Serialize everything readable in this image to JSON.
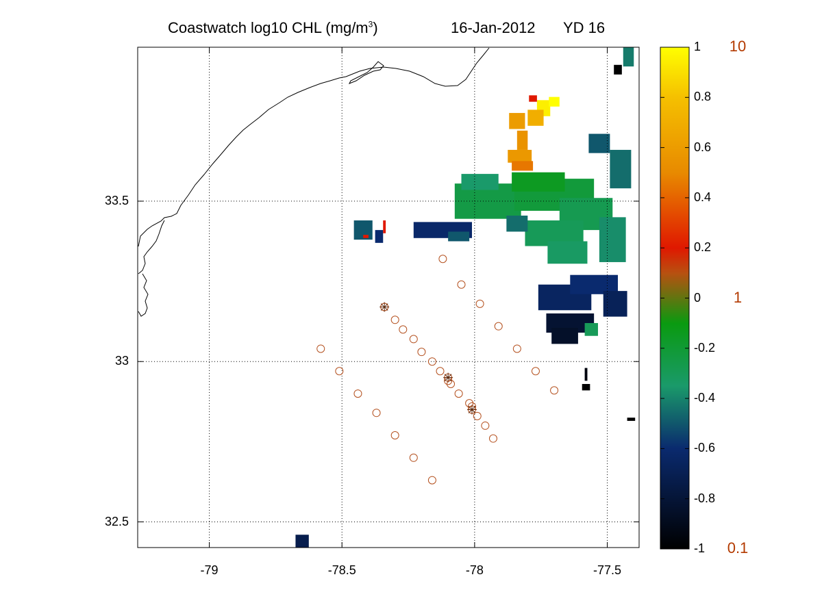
{
  "title": {
    "main_prefix": "Coastwatch  log10  CHL (mg/m",
    "main_sup": "3",
    "main_suffix": ")",
    "date": "16-Jan-2012",
    "yearday": "YD 16"
  },
  "map": {
    "lon_range": [
      -79.27,
      -77.38
    ],
    "lat_range": [
      32.42,
      33.98
    ],
    "lon_ticks": [
      -79,
      -78.5,
      -78,
      -77.5
    ],
    "lon_tick_labels": [
      "-79",
      "-78.5",
      "-78",
      "-77.5"
    ],
    "lat_ticks": [
      32.5,
      33,
      33.5
    ],
    "lat_tick_labels": [
      "32.5",
      "33",
      "33.5"
    ],
    "grid": true,
    "coastline_color": "#000000"
  },
  "stations": {
    "marker": "circle",
    "marker_color": "#b4501e",
    "points": [
      [
        -78.12,
        33.32
      ],
      [
        -78.05,
        33.24
      ],
      [
        -77.98,
        33.18
      ],
      [
        -77.91,
        33.11
      ],
      [
        -77.84,
        33.04
      ],
      [
        -77.77,
        32.97
      ],
      [
        -77.7,
        32.91
      ],
      [
        -78.58,
        33.04
      ],
      [
        -78.51,
        32.97
      ],
      [
        -78.44,
        32.9
      ],
      [
        -78.37,
        32.84
      ],
      [
        -78.3,
        32.77
      ],
      [
        -78.23,
        32.7
      ],
      [
        -78.16,
        32.63
      ],
      [
        -78.34,
        33.17
      ],
      [
        -78.3,
        33.13
      ],
      [
        -78.27,
        33.1
      ],
      [
        -78.23,
        33.07
      ],
      [
        -78.2,
        33.03
      ],
      [
        -78.16,
        33.0
      ],
      [
        -78.13,
        32.97
      ],
      [
        -78.1,
        32.94
      ],
      [
        -78.09,
        32.93
      ],
      [
        -78.06,
        32.9
      ],
      [
        -78.02,
        32.87
      ],
      [
        -78.01,
        32.86
      ],
      [
        -77.99,
        32.83
      ],
      [
        -77.96,
        32.8
      ],
      [
        -77.93,
        32.76
      ]
    ],
    "highlighted": [
      [
        -78.34,
        33.17
      ],
      [
        -78.1,
        32.95
      ],
      [
        -78.01,
        32.85
      ]
    ]
  },
  "chl_patches": [
    {
      "lon": -77.74,
      "lat": 33.79,
      "w": 0.05,
      "h": 0.05,
      "value": 0.95
    },
    {
      "lon": -77.7,
      "lat": 33.81,
      "w": 0.04,
      "h": 0.03,
      "value": 1.0
    },
    {
      "lon": -77.77,
      "lat": 33.76,
      "w": 0.06,
      "h": 0.05,
      "value": 0.7
    },
    {
      "lon": -77.84,
      "lat": 33.75,
      "w": 0.06,
      "h": 0.05,
      "value": 0.6
    },
    {
      "lon": -77.82,
      "lat": 33.69,
      "w": 0.04,
      "h": 0.06,
      "value": 0.55
    },
    {
      "lon": -77.83,
      "lat": 33.64,
      "w": 0.09,
      "h": 0.04,
      "value": 0.58
    },
    {
      "lon": -77.82,
      "lat": 33.61,
      "w": 0.08,
      "h": 0.03,
      "value": 0.45
    },
    {
      "lon": -77.78,
      "lat": 33.82,
      "w": 0.03,
      "h": 0.02,
      "value": 0.2
    },
    {
      "lon": -77.42,
      "lat": 33.95,
      "w": 0.04,
      "h": 0.06,
      "value": -0.42
    },
    {
      "lon": -77.46,
      "lat": 33.91,
      "w": 0.03,
      "h": 0.03,
      "value": -1.0
    },
    {
      "lon": -77.53,
      "lat": 33.68,
      "w": 0.08,
      "h": 0.06,
      "value": -0.5
    },
    {
      "lon": -77.45,
      "lat": 33.6,
      "w": 0.08,
      "h": 0.12,
      "value": -0.45
    },
    {
      "lon": -77.95,
      "lat": 33.5,
      "w": 0.25,
      "h": 0.11,
      "value": -0.25
    },
    {
      "lon": -77.7,
      "lat": 33.52,
      "w": 0.3,
      "h": 0.1,
      "value": -0.22
    },
    {
      "lon": -77.58,
      "lat": 33.46,
      "w": 0.2,
      "h": 0.1,
      "value": -0.28
    },
    {
      "lon": -77.76,
      "lat": 33.56,
      "w": 0.2,
      "h": 0.06,
      "value": -0.15
    },
    {
      "lon": -77.98,
      "lat": 33.56,
      "w": 0.14,
      "h": 0.05,
      "value": -0.35
    },
    {
      "lon": -77.7,
      "lat": 33.4,
      "w": 0.22,
      "h": 0.08,
      "value": -0.3
    },
    {
      "lon": -77.65,
      "lat": 33.34,
      "w": 0.15,
      "h": 0.07,
      "value": -0.33
    },
    {
      "lon": -77.48,
      "lat": 33.38,
      "w": 0.1,
      "h": 0.14,
      "value": -0.38
    },
    {
      "lon": -77.84,
      "lat": 33.43,
      "w": 0.08,
      "h": 0.05,
      "value": -0.45
    },
    {
      "lon": -78.12,
      "lat": 33.41,
      "w": 0.22,
      "h": 0.05,
      "value": -0.62
    },
    {
      "lon": -78.06,
      "lat": 33.39,
      "w": 0.08,
      "h": 0.03,
      "value": -0.5
    },
    {
      "lon": -77.66,
      "lat": 33.2,
      "w": 0.2,
      "h": 0.08,
      "value": -0.65
    },
    {
      "lon": -77.55,
      "lat": 33.24,
      "w": 0.18,
      "h": 0.06,
      "value": -0.6
    },
    {
      "lon": -77.47,
      "lat": 33.18,
      "w": 0.09,
      "h": 0.08,
      "value": -0.68
    },
    {
      "lon": -77.64,
      "lat": 33.12,
      "w": 0.18,
      "h": 0.06,
      "value": -0.82
    },
    {
      "lon": -77.66,
      "lat": 33.08,
      "w": 0.1,
      "h": 0.05,
      "value": -0.85
    },
    {
      "lon": -77.56,
      "lat": 33.1,
      "w": 0.05,
      "h": 0.04,
      "value": -0.3
    },
    {
      "lon": -78.42,
      "lat": 33.41,
      "w": 0.07,
      "h": 0.06,
      "value": -0.5
    },
    {
      "lon": -78.36,
      "lat": 33.39,
      "w": 0.03,
      "h": 0.04,
      "value": -0.6
    },
    {
      "lon": -78.41,
      "lat": 33.39,
      "w": 0.02,
      "h": 0.01,
      "value": 0.2
    },
    {
      "lon": -78.34,
      "lat": 33.42,
      "w": 0.01,
      "h": 0.04,
      "value": 0.2
    },
    {
      "lon": -77.58,
      "lat": 32.96,
      "w": 0.01,
      "h": 0.04,
      "value": -0.95
    },
    {
      "lon": -77.58,
      "lat": 32.92,
      "w": 0.03,
      "h": 0.02,
      "value": -1.0
    },
    {
      "lon": -77.41,
      "lat": 32.82,
      "w": 0.03,
      "h": 0.01,
      "value": -1.0
    },
    {
      "lon": -78.65,
      "lat": 32.44,
      "w": 0.05,
      "h": 0.04,
      "value": -0.72
    }
  ],
  "colorbar": {
    "range": [
      -1,
      1
    ],
    "ticks": [
      1,
      0.8,
      0.6,
      0.4,
      0.2,
      0,
      -0.2,
      -0.4,
      -0.6,
      -0.8,
      -1
    ],
    "tick_labels": [
      "1",
      "0.8",
      "0.6",
      "0.4",
      "0.2",
      "0",
      "-0.2",
      "-0.4",
      "-0.6",
      "-0.8",
      "-1"
    ],
    "linear_labels": [
      "10",
      "1",
      "0.1"
    ],
    "linear_label_values": [
      1,
      0,
      -1
    ],
    "linear_label_color": "#b33a00",
    "color_stops": [
      {
        "value": -1.0,
        "color": "#000000"
      },
      {
        "value": -0.6,
        "color": "#0a2a6e"
      },
      {
        "value": -0.35,
        "color": "#1a9a6a"
      },
      {
        "value": -0.1,
        "color": "#0a9a10"
      },
      {
        "value": 0.1,
        "color": "#b85010"
      },
      {
        "value": 0.2,
        "color": "#e01800"
      },
      {
        "value": 0.5,
        "color": "#e88a00"
      },
      {
        "value": 0.8,
        "color": "#f5c000"
      },
      {
        "value": 1.0,
        "color": "#ffff00"
      }
    ]
  }
}
